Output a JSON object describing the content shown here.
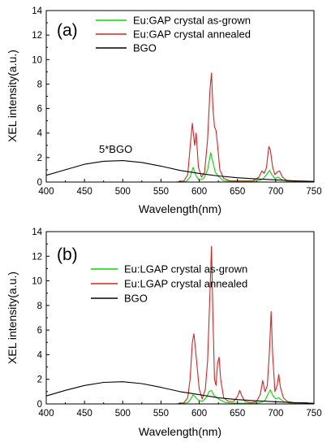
{
  "chart_data": [
    {
      "type": "line",
      "panel_label": "(a)",
      "xlabel": "Wavelength(nm)",
      "ylabel": "XEL intensity(a.u.)",
      "xlim": [
        400,
        750
      ],
      "ylim": [
        0,
        14
      ],
      "xticks": [
        400,
        450,
        500,
        550,
        600,
        650,
        700,
        750
      ],
      "yticks": [
        0,
        2,
        4,
        6,
        8,
        10,
        12,
        14
      ],
      "grid": false,
      "legend_position": "top-right",
      "annotation": "5*BGO",
      "series": [
        {
          "name": "Eu:GAP crystal as-grown",
          "color": "#00dd00",
          "x": [
            400,
            570,
            583,
            588,
            592,
            596,
            600,
            606,
            611,
            615,
            618,
            621,
            626,
            632,
            645,
            670,
            680,
            684,
            688,
            692,
            695,
            699,
            703,
            708,
            715,
            750
          ],
          "y": [
            0,
            0,
            0.05,
            0.4,
            1.2,
            0.5,
            0.15,
            0.3,
            1.0,
            2.4,
            1.6,
            0.8,
            0.4,
            0.1,
            0.05,
            0.05,
            0.15,
            0.3,
            0.6,
            0.95,
            0.6,
            0.3,
            0.4,
            0.2,
            0.05,
            0
          ]
        },
        {
          "name": "Eu:GAP crystal annealed",
          "color": "#e02020",
          "x": [
            400,
            570,
            580,
            585,
            589,
            591,
            594,
            596,
            599,
            603,
            607,
            611,
            614,
            616,
            618,
            620,
            622,
            624,
            627,
            632,
            640,
            670,
            678,
            682,
            685,
            688,
            691,
            693,
            696,
            699,
            702,
            705,
            709,
            715,
            750
          ],
          "y": [
            0,
            0,
            0.1,
            0.6,
            3.5,
            4.8,
            3.0,
            4.0,
            1.2,
            0.4,
            0.8,
            3.5,
            7.5,
            8.9,
            6.0,
            4.5,
            4.2,
            3.0,
            1.0,
            0.3,
            0.1,
            0.1,
            0.4,
            0.9,
            0.7,
            1.2,
            2.9,
            2.6,
            1.2,
            0.6,
            0.8,
            0.9,
            0.4,
            0.1,
            0
          ]
        },
        {
          "name": "BGO",
          "color": "#000000",
          "x": [
            400,
            425,
            450,
            475,
            500,
            525,
            550,
            575,
            600,
            625,
            650,
            675,
            700,
            725,
            750
          ],
          "y": [
            0.55,
            1.0,
            1.45,
            1.7,
            1.75,
            1.6,
            1.3,
            0.95,
            0.7,
            0.5,
            0.35,
            0.25,
            0.18,
            0.1,
            0.05
          ]
        }
      ]
    },
    {
      "type": "line",
      "panel_label": "(b)",
      "xlabel": "Wavelength(nm)",
      "ylabel": "XEL intensity(a.u.)",
      "xlim": [
        400,
        750
      ],
      "ylim": [
        0,
        14
      ],
      "xticks": [
        400,
        450,
        500,
        550,
        600,
        650,
        700,
        750
      ],
      "yticks": [
        0,
        2,
        4,
        6,
        8,
        10,
        12,
        14
      ],
      "grid": false,
      "legend_position": "top-right",
      "series": [
        {
          "name": "Eu:LGAP crystal as-grown",
          "color": "#00dd00",
          "x": [
            400,
            570,
            585,
            589,
            592,
            595,
            599,
            604,
            609,
            613,
            616,
            619,
            623,
            628,
            635,
            650,
            670,
            680,
            686,
            690,
            693,
            696,
            700,
            704,
            710,
            720,
            750
          ],
          "y": [
            0,
            0,
            0.1,
            0.4,
            0.75,
            0.55,
            0.3,
            0.2,
            0.5,
            1.0,
            1.1,
            0.7,
            0.5,
            0.3,
            0.1,
            0.05,
            0.05,
            0.1,
            0.3,
            0.8,
            1.15,
            0.7,
            0.4,
            0.5,
            0.2,
            0.05,
            0
          ]
        },
        {
          "name": "Eu:LGAP crystal annealed",
          "color": "#e02020",
          "x": [
            400,
            570,
            580,
            585,
            588,
            591,
            593,
            595,
            597,
            600,
            604,
            608,
            611,
            614,
            616,
            618,
            620,
            622,
            624,
            626,
            628,
            632,
            638,
            645,
            650,
            653,
            656,
            660,
            668,
            675,
            680,
            683,
            686,
            689,
            692,
            694,
            696,
            699,
            702,
            704,
            706,
            710,
            715,
            725,
            740,
            750
          ],
          "y": [
            0,
            0,
            0.1,
            0.5,
            2.0,
            5.0,
            5.7,
            4.5,
            3.2,
            1.2,
            0.4,
            1.2,
            3.5,
            9.0,
            12.8,
            7.0,
            2.0,
            1.5,
            3.3,
            3.8,
            2.0,
            0.5,
            0.2,
            0.2,
            0.6,
            1.1,
            0.6,
            0.2,
            0.1,
            0.2,
            0.8,
            1.9,
            1.0,
            1.5,
            4.5,
            7.5,
            4.0,
            1.0,
            1.5,
            2.4,
            1.4,
            0.5,
            0.2,
            0.1,
            0.1,
            0
          ]
        },
        {
          "name": "BGO",
          "color": "#000000",
          "x": [
            400,
            425,
            450,
            475,
            500,
            525,
            550,
            575,
            600,
            625,
            650,
            675,
            700,
            725,
            750
          ],
          "y": [
            0.65,
            1.1,
            1.5,
            1.75,
            1.8,
            1.65,
            1.35,
            1.0,
            0.75,
            0.5,
            0.35,
            0.25,
            0.18,
            0.1,
            0.05
          ]
        }
      ]
    }
  ]
}
